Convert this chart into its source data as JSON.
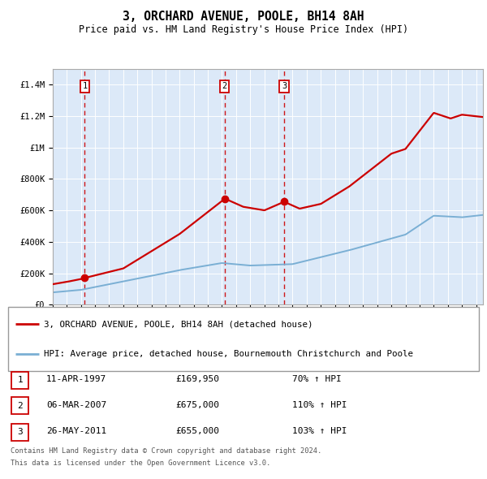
{
  "title": "3, ORCHARD AVENUE, POOLE, BH14 8AH",
  "subtitle": "Price paid vs. HM Land Registry's House Price Index (HPI)",
  "red_label": "3, ORCHARD AVENUE, POOLE, BH14 8AH (detached house)",
  "blue_label": "HPI: Average price, detached house, Bournemouth Christchurch and Poole",
  "footnote1": "Contains HM Land Registry data © Crown copyright and database right 2024.",
  "footnote2": "This data is licensed under the Open Government Licence v3.0.",
  "transactions": [
    {
      "num": 1,
      "date": "11-APR-1997",
      "price": "£169,950",
      "pct": "70% ↑ HPI",
      "year": 1997.28
    },
    {
      "num": 2,
      "date": "06-MAR-2007",
      "price": "£675,000",
      "pct": "110% ↑ HPI",
      "year": 2007.18
    },
    {
      "num": 3,
      "date": "26-MAY-2011",
      "price": "£655,000",
      "pct": "103% ↑ HPI",
      "year": 2011.4
    }
  ],
  "transaction_values": [
    169950,
    675000,
    655000
  ],
  "plot_bg": "#dce9f8",
  "red_color": "#cc0000",
  "blue_color": "#7aafd4",
  "ylim": [
    0,
    1500000
  ],
  "yticks": [
    0,
    200000,
    400000,
    600000,
    800000,
    1000000,
    1200000,
    1400000
  ],
  "ytick_labels": [
    "£0",
    "£200K",
    "£400K",
    "£600K",
    "£800K",
    "£1M",
    "£1.2M",
    "£1.4M"
  ],
  "xmin": 1995,
  "xmax": 2025.5
}
